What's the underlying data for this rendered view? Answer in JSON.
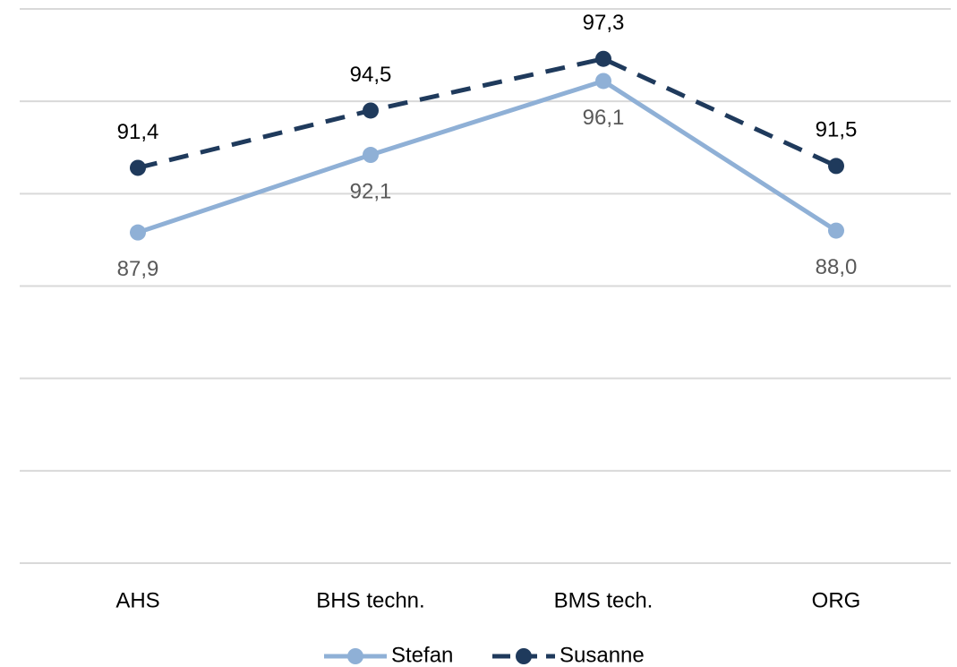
{
  "chart_data": {
    "type": "line",
    "categories": [
      "AHS",
      "BHS techn.",
      "BMS tech.",
      "ORG"
    ],
    "series": [
      {
        "name": "Stefan",
        "color": "#8fb0d6",
        "line_style": "solid",
        "label_position": "below",
        "values": [
          87.9,
          92.1,
          96.1,
          88.0
        ],
        "value_labels": [
          "87,9",
          "92,1",
          "96,1",
          "88,0"
        ]
      },
      {
        "name": "Susanne",
        "color": "#1f3a5c",
        "line_style": "dashed",
        "label_position": "above",
        "values": [
          91.4,
          94.5,
          97.3,
          91.5
        ],
        "value_labels": [
          "91,4",
          "94,5",
          "97,3",
          "91,5"
        ]
      }
    ],
    "ylim": [
      70,
      100
    ],
    "yticks": [
      70,
      75,
      80,
      85,
      90,
      95,
      100
    ],
    "grid": true,
    "legend": "bottom"
  }
}
